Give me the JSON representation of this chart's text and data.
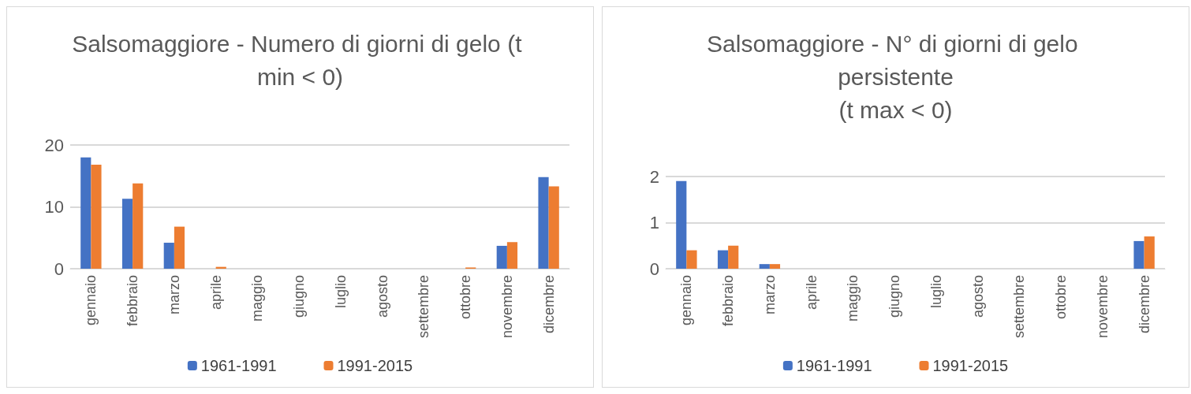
{
  "chart_data": [
    {
      "type": "bar",
      "title": "Salsomaggiore - Numero di giorni di gelo (t min < 0)",
      "categories": [
        "gennaio",
        "febbraio",
        "marzo",
        "aprile",
        "maggio",
        "giugno",
        "luglio",
        "agosto",
        "settembre",
        "ottobre",
        "novembre",
        "dicembre"
      ],
      "series": [
        {
          "name": "1961-1991",
          "color": "#4472c4",
          "values": [
            18,
            11.3,
            4.2,
            0,
            0,
            0,
            0,
            0,
            0,
            0,
            3.7,
            14.8
          ]
        },
        {
          "name": "1991-2015",
          "color": "#ed7d31",
          "values": [
            16.8,
            13.8,
            6.8,
            0.3,
            0,
            0,
            0,
            0,
            0,
            0.2,
            4.3,
            13.3
          ]
        }
      ],
      "ylim": [
        0,
        20
      ],
      "yticks": [
        0,
        10,
        20
      ],
      "grid": "y",
      "legend": "bottom"
    },
    {
      "type": "bar",
      "title": "Salsomaggiore - N° di giorni di gelo persistente\n(t max < 0)",
      "categories": [
        "gennaio",
        "febbraio",
        "marzo",
        "aprile",
        "maggio",
        "giugno",
        "luglio",
        "agosto",
        "settembre",
        "ottobre",
        "novembre",
        "dicembre"
      ],
      "series": [
        {
          "name": "1961-1991",
          "color": "#4472c4",
          "values": [
            1.9,
            0.4,
            0.1,
            0,
            0,
            0,
            0,
            0,
            0,
            0,
            0,
            0.6
          ]
        },
        {
          "name": "1991-2015",
          "color": "#ed7d31",
          "values": [
            0.4,
            0.5,
            0.1,
            0,
            0,
            0,
            0,
            0,
            0,
            0,
            0,
            0.7
          ]
        }
      ],
      "ylim": [
        0,
        2
      ],
      "yticks": [
        0,
        1,
        2
      ],
      "grid": "y",
      "legend": "bottom"
    }
  ]
}
